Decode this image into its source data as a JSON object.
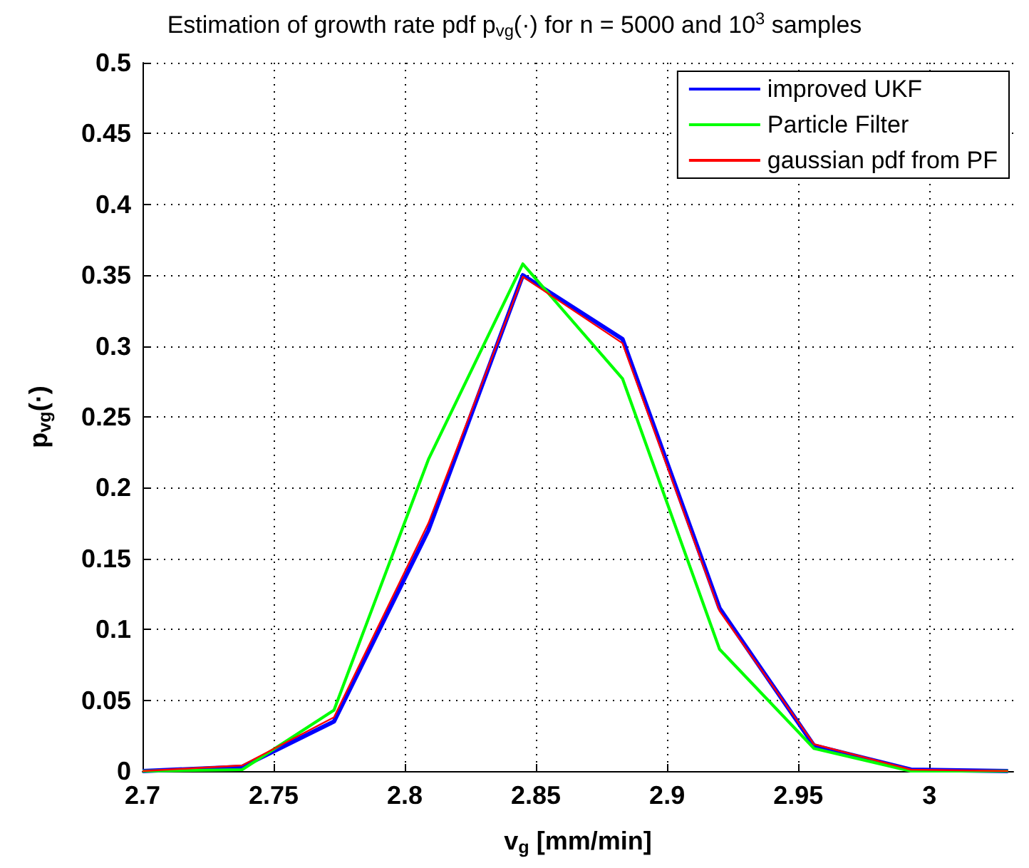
{
  "chart_data": {
    "type": "line",
    "title": "Estimation of growth rate pdf p$_{vg}$(·) for n = 5000 and 10$^{3}$ samples",
    "xlabel": "v$_{g}$ [mm/min]",
    "ylabel": "p$_{vg}$(·)",
    "x": [
      2.7,
      2.738,
      2.773,
      2.809,
      2.845,
      2.883,
      2.92,
      2.956,
      2.993,
      3.03
    ],
    "series": [
      {
        "name": "improved UKF",
        "color": "#0000ff",
        "values": [
          0,
          0.003,
          0.035,
          0.17,
          0.35,
          0.305,
          0.115,
          0.018,
          0.001,
          0
        ]
      },
      {
        "name": "Particle Filter",
        "color": "#00ff00",
        "values": [
          0,
          0.001,
          0.043,
          0.22,
          0.358,
          0.277,
          0.086,
          0.016,
          0,
          0
        ]
      },
      {
        "name": "gaussian pdf from PF",
        "color": "#ff0000",
        "values": [
          0,
          0.004,
          0.038,
          0.175,
          0.349,
          0.302,
          0.113,
          0.019,
          0.001,
          0
        ]
      }
    ],
    "xlim": [
      2.7,
      3.032
    ],
    "xticks": [
      2.7,
      2.75,
      2.8,
      2.85,
      2.9,
      2.95,
      3
    ],
    "ylim": [
      0,
      0.5
    ],
    "yticks": [
      0,
      0.05,
      0.1,
      0.15,
      0.2,
      0.25,
      0.3,
      0.35,
      0.4,
      0.45,
      0.5
    ],
    "grid": true,
    "legend": "top right",
    "marker": "none",
    "line_style": "solid"
  }
}
